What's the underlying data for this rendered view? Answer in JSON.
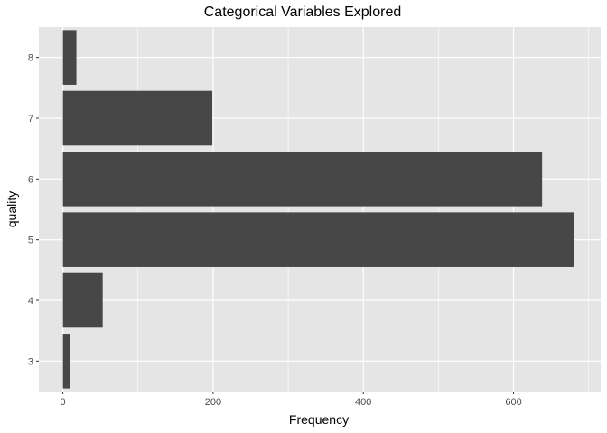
{
  "chart_data": {
    "type": "bar",
    "orientation": "horizontal",
    "title": "Categorical Variables Explored",
    "xlabel": "Frequency",
    "ylabel": "quality",
    "categories": [
      "3",
      "4",
      "5",
      "6",
      "7",
      "8"
    ],
    "values": [
      10,
      53,
      681,
      638,
      199,
      18
    ],
    "xlim": [
      -32,
      716
    ],
    "x_ticks": [
      "0",
      "200",
      "400",
      "600"
    ],
    "x_tick_values": [
      0,
      200,
      400,
      600
    ],
    "x_minor_values": [
      100,
      300,
      500,
      700
    ],
    "grid": true,
    "legend": "none",
    "colors": {
      "panel": "#e5e5e5",
      "grid": "#ffffff",
      "bar": "#474747",
      "tick": "#333333",
      "tick_label": "#4d4d4d"
    }
  }
}
